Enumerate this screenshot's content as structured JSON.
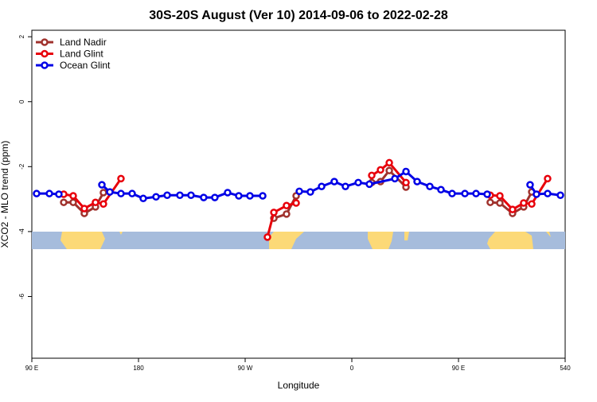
{
  "chart_data": {
    "type": "line",
    "title": "30S-20S August (Ver 10)   2014-09-06 to 2022-02-28",
    "x_label": "Longitude",
    "y_label": "XCO2 - MLO trend (ppm)",
    "xlim": [
      90,
      540
    ],
    "ylim": [
      -7.9,
      2.2
    ],
    "xticks": [
      {
        "value": 90,
        "label": "90 E"
      },
      180,
      {
        "value": 270,
        "label": "90 W"
      },
      0,
      {
        "value": 450,
        "label": "90 E"
      },
      540
    ],
    "yticks": [
      2,
      0,
      -2,
      -4,
      -6
    ],
    "legend": "top-left",
    "series": [
      {
        "name": "Land Nadir",
        "color": "#a0322d",
        "x": [
          116.9,
          124.9,
          134.3,
          143.7,
          150.4,
          null,
          294.2,
          304.9,
          313,
          null,
          376.8,
          384.2,
          391.6,
          405.7,
          null,
          476.8,
          484.9,
          495.6,
          505,
          511.8
        ],
        "values": [
          -3.1,
          -3.1,
          -3.44,
          -3.24,
          -2.8,
          null,
          -3.59,
          -3.46,
          -2.9,
          null,
          -2.49,
          -2.46,
          -2.12,
          -2.63,
          null,
          -3.1,
          -3.12,
          -3.44,
          -3.24,
          -2.78
        ]
      },
      {
        "name": "Land Glint",
        "color": "#e8000b",
        "x": [
          116.9,
          124.9,
          134.3,
          143.7,
          150.4,
          165.2,
          null,
          288.8,
          294.2,
          304.9,
          313,
          null,
          376.8,
          384.2,
          391.6,
          405.7,
          null,
          476.8,
          484.9,
          495.6,
          505,
          511.8,
          525.2
        ],
        "values": [
          -2.85,
          -2.9,
          -3.29,
          -3.1,
          -3.15,
          -2.37,
          null,
          -4.17,
          -3.41,
          -3.2,
          -3.12,
          null,
          -2.27,
          -2.1,
          -1.88,
          -2.49,
          null,
          -2.88,
          -2.9,
          -3.32,
          -3.12,
          -3.15,
          -2.37
        ]
      },
      {
        "name": "Ocean Glint",
        "color": "#0000e6",
        "x": [
          94,
          104.8,
          112.8,
          null,
          149.1,
          155.8,
          165.2,
          174.6,
          184,
          194.8,
          204.2,
          214.9,
          224.3,
          235,
          244.4,
          255.2,
          264.6,
          274,
          284.8,
          null,
          315.7,
          325,
          334.5,
          345.2,
          354.6,
          365.4,
          374.8,
          396.3,
          405.7,
          415.1,
          425.8,
          435.2,
          444.6,
          455.4,
          464.8,
          474.2,
          null,
          510.4,
          515.8,
          525.2,
          536
        ],
        "values": [
          -2.83,
          -2.83,
          -2.85,
          null,
          -2.56,
          -2.78,
          -2.83,
          -2.83,
          -2.98,
          -2.93,
          -2.88,
          -2.88,
          -2.88,
          -2.95,
          -2.95,
          -2.8,
          -2.9,
          -2.9,
          -2.9,
          null,
          -2.76,
          -2.78,
          -2.61,
          -2.46,
          -2.61,
          -2.49,
          -2.54,
          -2.37,
          -2.15,
          -2.46,
          -2.61,
          -2.71,
          -2.83,
          -2.83,
          -2.83,
          -2.85,
          null,
          -2.56,
          -2.85,
          -2.83,
          -2.88
        ]
      }
    ]
  }
}
